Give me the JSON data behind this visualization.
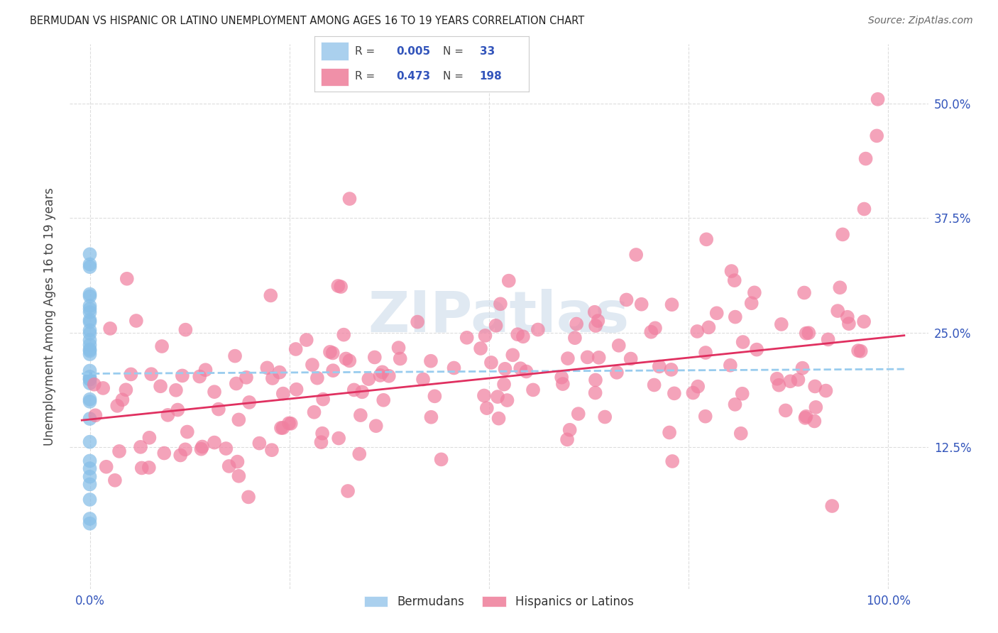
{
  "title": "BERMUDAN VS HISPANIC OR LATINO UNEMPLOYMENT AMONG AGES 16 TO 19 YEARS CORRELATION CHART",
  "source": "Source: ZipAtlas.com",
  "ylabel_label": "Unemployment Among Ages 16 to 19 years",
  "bermudan_color": "#88bfe8",
  "hispanic_color": "#f080a0",
  "trend_bermudan_color": "#99ccee",
  "trend_hispanic_color": "#e03060",
  "watermark_color": "#c8d8e8",
  "background_color": "#ffffff",
  "grid_color": "#dddddd",
  "tick_label_color": "#3355bb",
  "title_color": "#222222",
  "legend_berm_color": "#aad0ee",
  "legend_hisp_color": "#f090a8",
  "legend_border_color": "#cccccc",
  "axis_label_color": "#444444",
  "source_color": "#666666"
}
